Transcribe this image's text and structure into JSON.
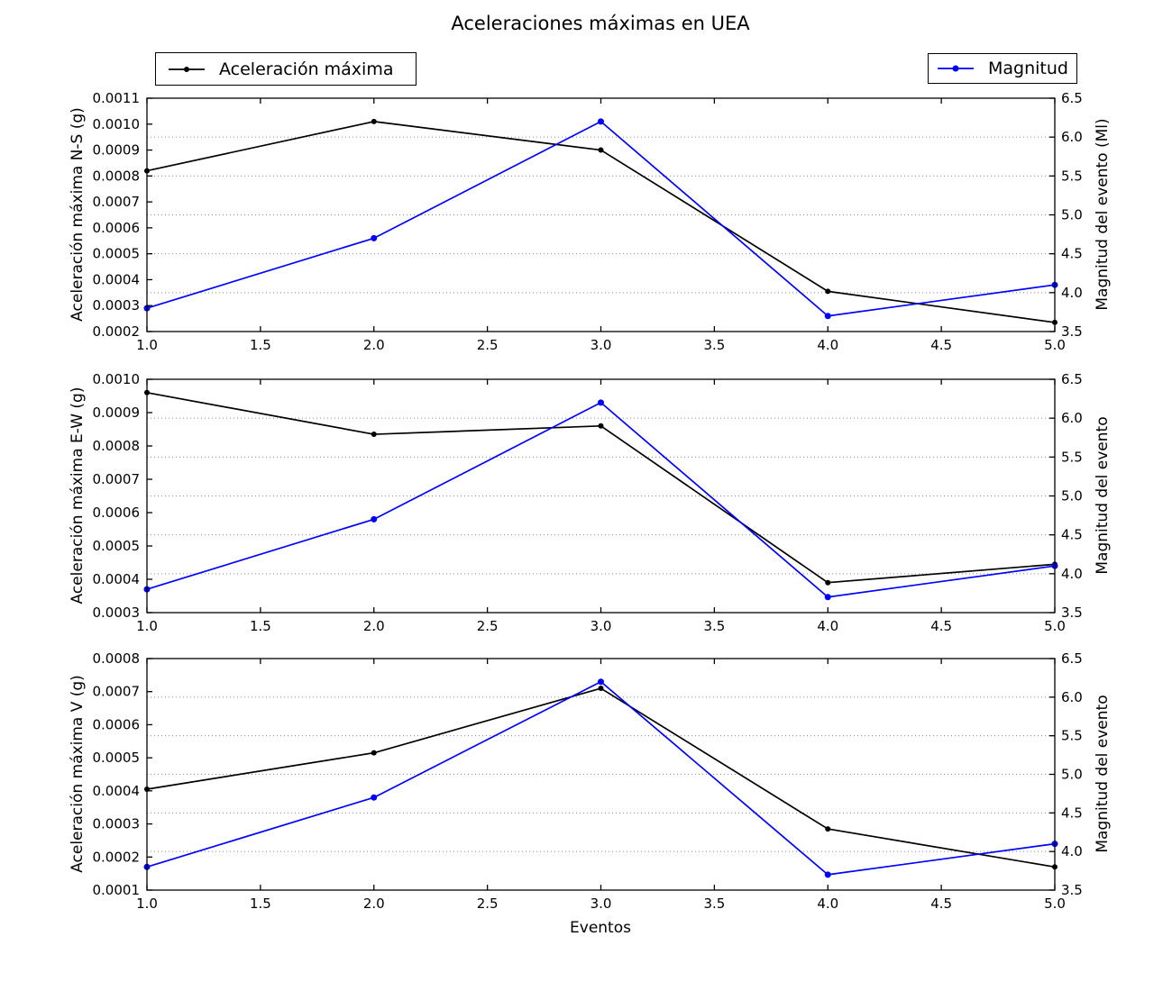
{
  "title": "Aceleraciones máximas en UEA",
  "xlabel": "Eventos",
  "legends": [
    {
      "label": "Aceleración máxima",
      "color": "#000000"
    },
    {
      "label": "Magnitud",
      "color": "#0000ff"
    }
  ],
  "x_tick_labels": [
    "1.0",
    "1.5",
    "2.0",
    "2.5",
    "3.0",
    "3.5",
    "4.0",
    "4.5",
    "5.0"
  ],
  "x_range": [
    1.0,
    5.0
  ],
  "chart_data": [
    {
      "type": "line",
      "x": [
        1,
        2,
        3,
        4,
        5
      ],
      "left_axis": {
        "label": "Aceleración máxima N-S (g)",
        "range": [
          0.0002,
          0.0011
        ],
        "tick_labels": [
          "0.0002",
          "0.0003",
          "0.0004",
          "0.0005",
          "0.0006",
          "0.0007",
          "0.0008",
          "0.0009",
          "0.0010",
          "0.0011"
        ]
      },
      "right_axis": {
        "label": "Magnitud del evento (Ml)",
        "range": [
          3.5,
          6.5
        ],
        "tick_labels": [
          "3.5",
          "4.0",
          "4.5",
          "5.0",
          "5.5",
          "6.0",
          "6.5"
        ]
      },
      "grid_horizontal_at_right_values": [
        4.0,
        4.5,
        5.0,
        5.5,
        6.0
      ],
      "series": [
        {
          "name": "Aceleración máxima",
          "axis": "left",
          "color": "#000000",
          "values": [
            0.00082,
            0.00101,
            0.0009,
            0.000355,
            0.000235
          ]
        },
        {
          "name": "Magnitud",
          "axis": "right",
          "color": "#0000ff",
          "values": [
            3.8,
            4.7,
            6.2,
            3.7,
            4.1
          ]
        }
      ]
    },
    {
      "type": "line",
      "x": [
        1,
        2,
        3,
        4,
        5
      ],
      "left_axis": {
        "label": "Aceleración máxima E-W (g)",
        "range": [
          0.0003,
          0.001
        ],
        "tick_labels": [
          "0.0003",
          "0.0004",
          "0.0005",
          "0.0006",
          "0.0007",
          "0.0008",
          "0.0009",
          "0.0010"
        ]
      },
      "right_axis": {
        "label": "Magnitud del evento",
        "range": [
          3.5,
          6.5
        ],
        "tick_labels": [
          "3.5",
          "4.0",
          "4.5",
          "5.0",
          "5.5",
          "6.0",
          "6.5"
        ]
      },
      "grid_horizontal_at_right_values": [
        4.0,
        4.5,
        5.0,
        5.5,
        6.0
      ],
      "series": [
        {
          "name": "Aceleración máxima",
          "axis": "left",
          "color": "#000000",
          "values": [
            0.00096,
            0.000835,
            0.00086,
            0.00039,
            0.000445
          ]
        },
        {
          "name": "Magnitud",
          "axis": "right",
          "color": "#0000ff",
          "values": [
            3.8,
            4.7,
            6.2,
            3.7,
            4.1
          ]
        }
      ]
    },
    {
      "type": "line",
      "x": [
        1,
        2,
        3,
        4,
        5
      ],
      "left_axis": {
        "label": "Aceleración máxima V (g)",
        "range": [
          0.0001,
          0.0008
        ],
        "tick_labels": [
          "0.0001",
          "0.0002",
          "0.0003",
          "0.0004",
          "0.0005",
          "0.0006",
          "0.0007",
          "0.0008"
        ]
      },
      "right_axis": {
        "label": "Magnitud del evento",
        "range": [
          3.5,
          6.5
        ],
        "tick_labels": [
          "3.5",
          "4.0",
          "4.5",
          "5.0",
          "5.5",
          "6.0",
          "6.5"
        ]
      },
      "grid_horizontal_at_right_values": [
        4.0,
        4.5,
        5.0,
        5.5,
        6.0
      ],
      "series": [
        {
          "name": "Aceleración máxima",
          "axis": "left",
          "color": "#000000",
          "values": [
            0.000405,
            0.000515,
            0.00071,
            0.000285,
            0.00017
          ]
        },
        {
          "name": "Magnitud",
          "axis": "right",
          "color": "#0000ff",
          "values": [
            3.8,
            4.7,
            6.2,
            3.7,
            4.1
          ]
        }
      ]
    }
  ]
}
